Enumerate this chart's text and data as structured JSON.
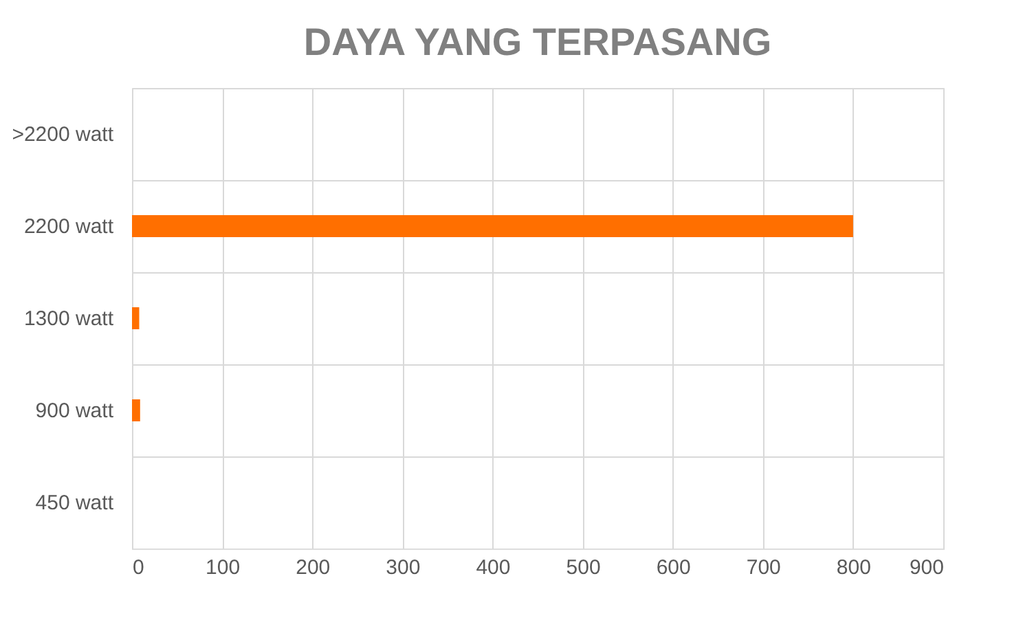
{
  "chart_data": {
    "type": "bar",
    "orientation": "horizontal",
    "title": "DAYA YANG TERPASANG",
    "categories": [
      ">2200 watt",
      "2200 watt",
      "1300 watt",
      "900 watt",
      "450 watt"
    ],
    "values": [
      0,
      800,
      8,
      9,
      0
    ],
    "color": "#ff6f00",
    "xlim": [
      0,
      900
    ],
    "xticks": [
      0,
      100,
      200,
      300,
      400,
      500,
      600,
      700,
      800,
      900
    ],
    "grid": true
  }
}
